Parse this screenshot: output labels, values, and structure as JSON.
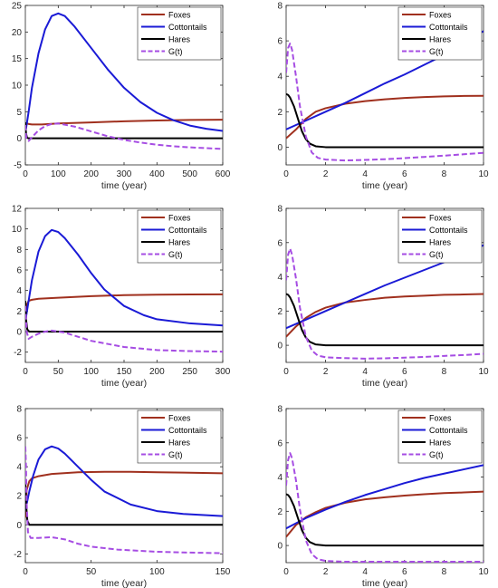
{
  "colors": {
    "foxes": "#a0301e",
    "cottontails": "#1a1ad6",
    "hares": "#000000",
    "g": "#a64de3"
  },
  "chart_data": [
    {
      "type": "line",
      "xlabel": "time (year)",
      "xlim": [
        0,
        600
      ],
      "ylim": [
        -5,
        25
      ],
      "xticks": [
        "0",
        "100",
        "200",
        "300",
        "400",
        "500",
        "600"
      ],
      "yticks": [
        "-5",
        "0",
        "5",
        "10",
        "15",
        "20",
        "25"
      ],
      "legend": "top-right",
      "grid": false,
      "series": [
        {
          "name": "Foxes",
          "x": [
            0,
            2,
            5,
            10,
            20,
            50,
            100,
            200,
            300,
            400,
            500,
            600
          ],
          "y": [
            0.5,
            2.5,
            2.8,
            2.7,
            2.6,
            2.6,
            2.8,
            3.0,
            3.2,
            3.35,
            3.45,
            3.5
          ]
        },
        {
          "name": "Cottontails",
          "x": [
            0,
            10,
            20,
            40,
            60,
            80,
            100,
            120,
            150,
            200,
            250,
            300,
            350,
            400,
            450,
            500,
            550,
            600
          ],
          "y": [
            1,
            5,
            9.5,
            16,
            20.5,
            23,
            23.5,
            23,
            21,
            17,
            13,
            9.5,
            6.8,
            4.8,
            3.4,
            2.4,
            1.8,
            1.4
          ]
        },
        {
          "name": "Hares",
          "x": [
            0,
            2,
            5,
            10,
            600
          ],
          "y": [
            3,
            1,
            0.1,
            0,
            0
          ]
        },
        {
          "name": "G(t)",
          "x": [
            0,
            3,
            10,
            20,
            40,
            60,
            80,
            100,
            150,
            200,
            250,
            300,
            350,
            400,
            450,
            500,
            550,
            600
          ],
          "y": [
            2.5,
            0,
            -0.5,
            0.2,
            1.5,
            2.3,
            2.7,
            2.8,
            2.2,
            1.3,
            0.4,
            -0.3,
            -0.8,
            -1.2,
            -1.5,
            -1.7,
            -1.85,
            -2
          ]
        }
      ]
    },
    {
      "type": "line",
      "xlabel": "time (year)",
      "xlim": [
        0,
        10
      ],
      "ylim": [
        -1,
        8
      ],
      "xticks": [
        "0",
        "2",
        "4",
        "6",
        "8",
        "10"
      ],
      "yticks": [
        "0",
        "2",
        "4",
        "6",
        "8"
      ],
      "legend": "top-right",
      "grid": false,
      "series": [
        {
          "name": "Foxes",
          "x": [
            0,
            0.5,
            1,
            1.5,
            2,
            3,
            4,
            5,
            6,
            7,
            8,
            9,
            10
          ],
          "y": [
            0.5,
            1.0,
            1.6,
            2.0,
            2.2,
            2.45,
            2.6,
            2.7,
            2.78,
            2.83,
            2.87,
            2.89,
            2.9
          ]
        },
        {
          "name": "Cottontails",
          "x": [
            0,
            1,
            2,
            3,
            4,
            5,
            6,
            7,
            8,
            9,
            10
          ],
          "y": [
            1,
            1.5,
            2.0,
            2.5,
            3.05,
            3.6,
            4.1,
            4.65,
            5.2,
            5.9,
            6.55
          ]
        },
        {
          "name": "Hares",
          "x": [
            0,
            0.1,
            0.2,
            0.4,
            0.6,
            0.8,
            1.0,
            1.2,
            1.5,
            2,
            10
          ],
          "y": [
            3,
            2.95,
            2.8,
            2.3,
            1.6,
            0.9,
            0.45,
            0.2,
            0.05,
            0,
            0
          ]
        },
        {
          "name": "G(t)",
          "x": [
            0,
            0.1,
            0.2,
            0.3,
            0.5,
            0.7,
            1.0,
            1.3,
            1.6,
            2,
            3,
            4,
            5,
            6,
            7,
            8,
            9,
            10
          ],
          "y": [
            4.2,
            5.6,
            5.85,
            5.5,
            4.0,
            2.3,
            0.6,
            -0.3,
            -0.6,
            -0.7,
            -0.75,
            -0.72,
            -0.68,
            -0.62,
            -0.55,
            -0.48,
            -0.4,
            -0.32
          ]
        }
      ]
    },
    {
      "type": "line",
      "xlabel": "time (year)",
      "xlim": [
        0,
        300
      ],
      "ylim": [
        -3,
        12
      ],
      "xticks": [
        "0",
        "50",
        "100",
        "150",
        "200",
        "250",
        "300"
      ],
      "yticks": [
        "-2",
        "0",
        "2",
        "4",
        "6",
        "8",
        "10",
        "12"
      ],
      "legend": "top-right",
      "grid": false,
      "series": [
        {
          "name": "Foxes",
          "x": [
            0,
            2,
            5,
            10,
            20,
            50,
            100,
            150,
            200,
            250,
            300
          ],
          "y": [
            0.5,
            2.6,
            3.0,
            3.1,
            3.2,
            3.3,
            3.45,
            3.55,
            3.6,
            3.62,
            3.63
          ]
        },
        {
          "name": "Cottontails",
          "x": [
            0,
            5,
            10,
            20,
            30,
            40,
            50,
            60,
            80,
            100,
            120,
            150,
            180,
            200,
            250,
            300
          ],
          "y": [
            1,
            3,
            5,
            7.8,
            9.3,
            9.9,
            9.7,
            9.1,
            7.5,
            5.7,
            4.1,
            2.5,
            1.6,
            1.2,
            0.8,
            0.6
          ]
        },
        {
          "name": "Hares",
          "x": [
            0,
            1,
            3,
            6,
            300
          ],
          "y": [
            3,
            1.2,
            0.2,
            0,
            0
          ]
        },
        {
          "name": "G(t)",
          "x": [
            0,
            2,
            5,
            10,
            20,
            30,
            40,
            50,
            60,
            80,
            100,
            150,
            200,
            250,
            300
          ],
          "y": [
            2.5,
            0,
            -0.7,
            -0.5,
            -0.2,
            0,
            0.1,
            0,
            -0.1,
            -0.5,
            -0.9,
            -1.5,
            -1.8,
            -1.9,
            -1.95
          ]
        }
      ]
    },
    {
      "type": "line",
      "xlabel": "time (year)",
      "xlim": [
        0,
        10
      ],
      "ylim": [
        -1,
        8
      ],
      "xticks": [
        "0",
        "2",
        "4",
        "6",
        "8",
        "10"
      ],
      "yticks": [
        "0",
        "2",
        "4",
        "6",
        "8"
      ],
      "legend": "top-right",
      "grid": false,
      "series": [
        {
          "name": "Foxes",
          "x": [
            0,
            0.5,
            1,
            1.5,
            2,
            3,
            4,
            5,
            6,
            7,
            8,
            9,
            10
          ],
          "y": [
            0.5,
            1.1,
            1.6,
            1.95,
            2.2,
            2.5,
            2.65,
            2.78,
            2.85,
            2.9,
            2.95,
            2.97,
            3.0
          ]
        },
        {
          "name": "Cottontails",
          "x": [
            0,
            1,
            2,
            3,
            4,
            5,
            6,
            7,
            8,
            9,
            10
          ],
          "y": [
            1,
            1.5,
            2.0,
            2.5,
            3.0,
            3.5,
            3.95,
            4.4,
            4.85,
            5.35,
            5.85
          ]
        },
        {
          "name": "Hares",
          "x": [
            0,
            0.1,
            0.2,
            0.4,
            0.6,
            0.8,
            1.0,
            1.2,
            1.5,
            2,
            10
          ],
          "y": [
            3,
            2.95,
            2.8,
            2.3,
            1.6,
            0.9,
            0.45,
            0.2,
            0.05,
            0,
            0
          ]
        },
        {
          "name": "G(t)",
          "x": [
            0,
            0.1,
            0.2,
            0.3,
            0.5,
            0.7,
            1.0,
            1.3,
            1.6,
            2,
            3,
            4,
            5,
            6,
            7,
            8,
            9,
            10
          ],
          "y": [
            3.8,
            5.3,
            5.65,
            5.3,
            3.9,
            2.2,
            0.5,
            -0.3,
            -0.6,
            -0.7,
            -0.75,
            -0.78,
            -0.76,
            -0.72,
            -0.68,
            -0.62,
            -0.57,
            -0.5
          ]
        }
      ]
    },
    {
      "type": "line",
      "xlabel": "time (year)",
      "xlim": [
        0,
        150
      ],
      "ylim": [
        -2.6,
        8
      ],
      "xticks": [
        "0",
        "50",
        "100",
        "150"
      ],
      "yticks": [
        "-2",
        "0",
        "2",
        "4",
        "6",
        "8"
      ],
      "legend": "top-right",
      "grid": false,
      "series": [
        {
          "name": "Foxes",
          "x": [
            0,
            1,
            3,
            5,
            10,
            20,
            40,
            60,
            80,
            100,
            120,
            150
          ],
          "y": [
            0.5,
            2.4,
            3.0,
            3.2,
            3.35,
            3.5,
            3.62,
            3.65,
            3.65,
            3.62,
            3.6,
            3.55
          ]
        },
        {
          "name": "Cottontails",
          "x": [
            0,
            3,
            6,
            10,
            15,
            20,
            25,
            30,
            40,
            50,
            60,
            80,
            100,
            120,
            150
          ],
          "y": [
            1,
            2.3,
            3.4,
            4.5,
            5.2,
            5.4,
            5.25,
            4.9,
            4.0,
            3.1,
            2.3,
            1.4,
            0.95,
            0.75,
            0.6
          ]
        },
        {
          "name": "Hares",
          "x": [
            0,
            0.5,
            1.5,
            3,
            150
          ],
          "y": [
            3,
            1.5,
            0.3,
            0,
            0
          ]
        },
        {
          "name": "G(t)",
          "x": [
            0,
            0.5,
            1,
            2,
            4,
            10,
            20,
            30,
            40,
            50,
            70,
            100,
            120,
            150
          ],
          "y": [
            5.4,
            4,
            1.5,
            -0.5,
            -0.9,
            -0.9,
            -0.85,
            -1.0,
            -1.3,
            -1.5,
            -1.7,
            -1.85,
            -1.9,
            -1.95
          ]
        }
      ]
    },
    {
      "type": "line",
      "xlabel": "time (year)",
      "xlim": [
        0,
        10
      ],
      "ylim": [
        -1,
        8
      ],
      "xticks": [
        "0",
        "2",
        "4",
        "6",
        "8",
        "10"
      ],
      "yticks": [
        "0",
        "2",
        "4",
        "6",
        "8"
      ],
      "legend": "top-right",
      "grid": false,
      "series": [
        {
          "name": "Foxes",
          "x": [
            0,
            0.5,
            1,
            1.5,
            2,
            3,
            4,
            5,
            6,
            7,
            8,
            9,
            10
          ],
          "y": [
            0.5,
            1.2,
            1.65,
            1.95,
            2.2,
            2.5,
            2.7,
            2.82,
            2.92,
            3.0,
            3.06,
            3.1,
            3.15
          ]
        },
        {
          "name": "Cottontails",
          "x": [
            0,
            1,
            2,
            3,
            4,
            5,
            6,
            7,
            8,
            9,
            10
          ],
          "y": [
            1,
            1.6,
            2.1,
            2.55,
            2.95,
            3.3,
            3.65,
            3.95,
            4.2,
            4.45,
            4.7
          ]
        },
        {
          "name": "Hares",
          "x": [
            0,
            0.1,
            0.2,
            0.4,
            0.6,
            0.8,
            1.0,
            1.2,
            1.5,
            2,
            10
          ],
          "y": [
            3,
            2.95,
            2.8,
            2.3,
            1.6,
            0.9,
            0.45,
            0.2,
            0.05,
            0,
            0
          ]
        },
        {
          "name": "G(t)",
          "x": [
            0,
            0.1,
            0.2,
            0.3,
            0.5,
            0.7,
            1.0,
            1.3,
            1.6,
            2,
            3,
            4,
            5,
            6,
            7,
            8,
            9,
            10
          ],
          "y": [
            3.5,
            5.0,
            5.4,
            5.1,
            3.8,
            2.1,
            0.3,
            -0.5,
            -0.8,
            -0.9,
            -0.95,
            -0.95,
            -0.95,
            -0.95,
            -0.95,
            -0.95,
            -0.95,
            -0.95
          ]
        }
      ]
    }
  ]
}
